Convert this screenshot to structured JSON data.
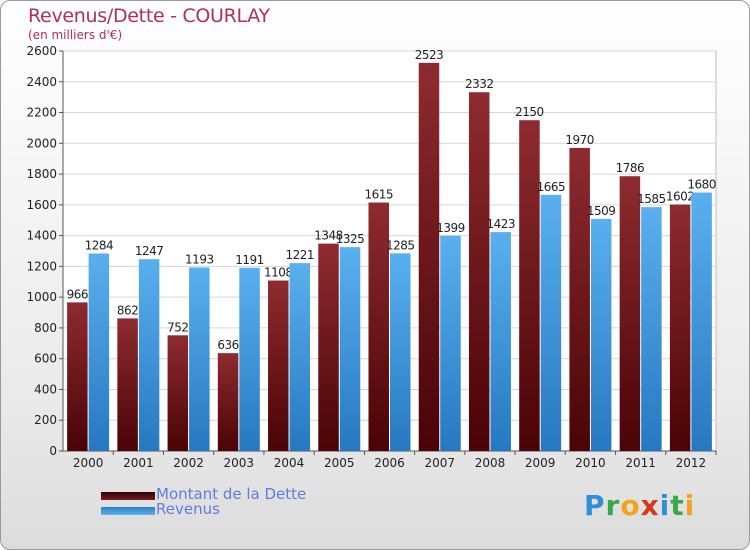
{
  "chart_data": {
    "type": "bar",
    "title": "Revenus/Dette - COURLAY",
    "subtitle": "(en milliers d'€)",
    "categories": [
      "2000",
      "2001",
      "2002",
      "2003",
      "2004",
      "2005",
      "2006",
      "2007",
      "2008",
      "2009",
      "2010",
      "2011",
      "2012"
    ],
    "series": [
      {
        "name": "Montant de la Dette",
        "color": "#6e1216",
        "values": [
          966,
          862,
          752,
          636,
          1108,
          1348,
          1615,
          2523,
          2332,
          2150,
          1970,
          1786,
          1602
        ]
      },
      {
        "name": "Revenus",
        "color": "#3b96dc",
        "values": [
          1284,
          1247,
          1193,
          1191,
          1221,
          1325,
          1285,
          1399,
          1423,
          1665,
          1509,
          1585,
          1680
        ]
      }
    ],
    "ylim": [
      0,
      2600
    ],
    "yticks": [
      0,
      200,
      400,
      600,
      800,
      1000,
      1200,
      1400,
      1600,
      1800,
      2000,
      2200,
      2400,
      2600
    ],
    "grid": true,
    "legend": "bottom-left"
  },
  "logo": {
    "text": "Proxiti"
  }
}
